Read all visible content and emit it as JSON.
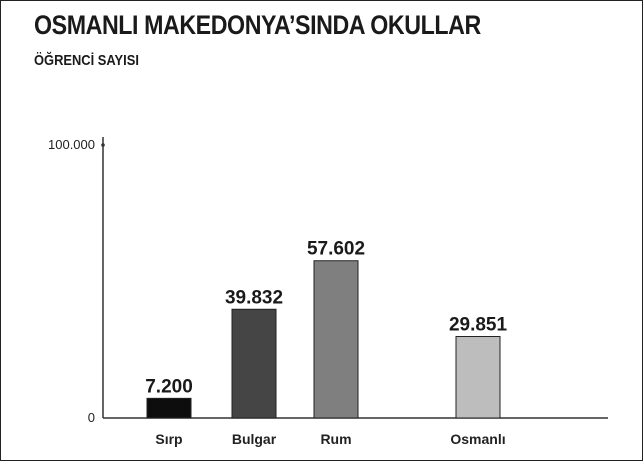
{
  "chart_data": {
    "type": "bar",
    "title": "OSMANLI MAKEDONYA’SINDA OKULLAR",
    "subtitle": "ÖĞRENCİ SAYISI",
    "categories": [
      "Sırp",
      "Bulgar",
      "Rum",
      "Osmanlı"
    ],
    "values": [
      7200,
      39832,
      57602,
      29851
    ],
    "value_labels": [
      "7.200",
      "39.832",
      "57.602",
      "29.851"
    ],
    "ylim": [
      0,
      100000
    ],
    "y_ticks": [
      {
        "value": 0,
        "label": "0"
      },
      {
        "value": 100000,
        "label": "100.000"
      }
    ],
    "colors": [
      "#0d0d0d",
      "#454545",
      "#7f7f7f",
      "#bdbdbd"
    ],
    "grid": false,
    "legend": "none"
  }
}
